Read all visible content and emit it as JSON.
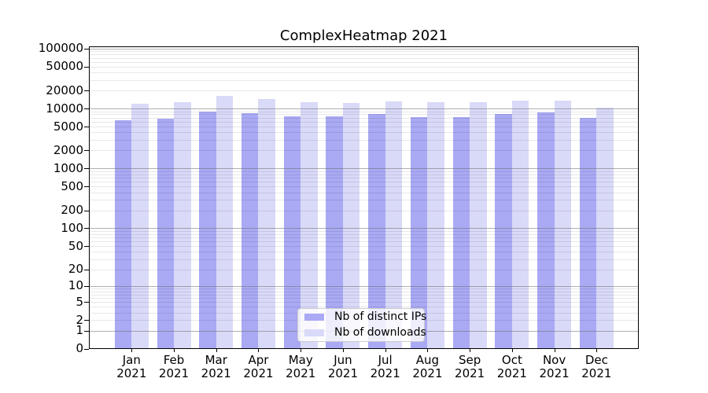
{
  "chart_data": {
    "type": "bar",
    "title": "ComplexHeatmap 2021",
    "categories": [
      "Jan 2021",
      "Feb 2021",
      "Mar 2021",
      "Apr 2021",
      "May 2021",
      "Jun 2021",
      "Jul 2021",
      "Aug 2021",
      "Sep 2021",
      "Oct 2021",
      "Nov 2021",
      "Dec 2021"
    ],
    "series": [
      {
        "name": "Nb of distinct IPs",
        "color": "#a9a9f4",
        "values": [
          6520,
          6790,
          8900,
          8460,
          7600,
          7560,
          8160,
          7380,
          7220,
          8330,
          8670,
          7070
        ]
      },
      {
        "name": "Nb of downloads",
        "color": "#d9d9f8",
        "values": [
          12350,
          12800,
          16500,
          14800,
          13100,
          12760,
          13270,
          12780,
          12800,
          13750,
          13900,
          10400
        ]
      }
    ],
    "xlabel": "",
    "ylabel": "",
    "y_scale": "log1p",
    "ylim": [
      0,
      110000
    ],
    "y_ticks": [
      100000,
      50000,
      20000,
      10000,
      5000,
      2000,
      1000,
      500,
      200,
      100,
      50,
      20,
      10,
      5,
      2,
      1,
      0
    ],
    "grid": "horizontal major+minor",
    "legend_position": "inside bottom-center",
    "colors": {
      "bar_distinct_ips": "#a9a9f4",
      "bar_downloads": "#d9d9f8",
      "grid_major": "#6e6e6e",
      "grid_minor": "#e8e8e8",
      "axis": "#000000",
      "background": "#ffffff"
    }
  },
  "legend": {
    "items": [
      {
        "label": "Nb of distinct IPs"
      },
      {
        "label": "Nb of downloads"
      }
    ]
  }
}
